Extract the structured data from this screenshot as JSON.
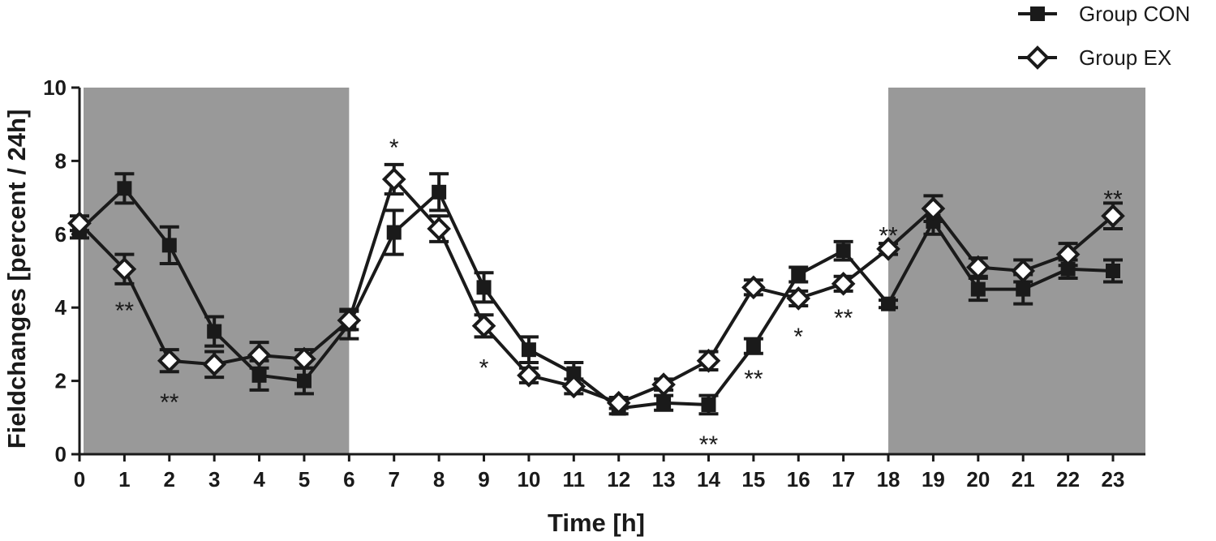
{
  "chart_data": {
    "type": "line",
    "xlabel": "Time [h]",
    "ylabel": "Fieldchanges [percent / 24h]",
    "xlim": [
      0,
      23
    ],
    "ylim": [
      0,
      10
    ],
    "x_ticks": [
      "0",
      "1",
      "2",
      "3",
      "4",
      "5",
      "6",
      "7",
      "8",
      "9",
      "10",
      "11",
      "12",
      "13",
      "14",
      "15",
      "16",
      "17",
      "18",
      "19",
      "20",
      "21",
      "22",
      "23"
    ],
    "y_ticks": [
      "0",
      "2",
      "4",
      "6",
      "8",
      "10"
    ],
    "grid": false,
    "legend_position": "top-right",
    "shaded_regions": [
      [
        0,
        6
      ],
      [
        18,
        23
      ]
    ],
    "shade_color": "#999999",
    "line_color": "#1a1a1a",
    "series": [
      {
        "name": "Group CON",
        "marker": "square-filled",
        "x": [
          0,
          1,
          2,
          3,
          4,
          5,
          6,
          7,
          8,
          9,
          10,
          11,
          12,
          13,
          14,
          15,
          16,
          17,
          18,
          19,
          20,
          21,
          22,
          23
        ],
        "y": [
          6.1,
          7.25,
          5.7,
          3.35,
          2.15,
          2.0,
          3.55,
          6.05,
          7.15,
          4.55,
          2.85,
          2.2,
          1.25,
          1.4,
          1.35,
          2.95,
          4.9,
          5.55,
          4.1,
          6.35,
          4.5,
          4.5,
          5.05,
          5.0
        ],
        "err": [
          0.2,
          0.4,
          0.5,
          0.4,
          0.4,
          0.35,
          0.4,
          0.6,
          0.5,
          0.4,
          0.35,
          0.3,
          0.15,
          0.2,
          0.25,
          0.2,
          0.2,
          0.25,
          0.1,
          0.35,
          0.3,
          0.4,
          0.25,
          0.3
        ]
      },
      {
        "name": "Group EX",
        "marker": "diamond-open",
        "x": [
          0,
          1,
          2,
          3,
          4,
          5,
          6,
          7,
          8,
          9,
          10,
          11,
          12,
          13,
          14,
          15,
          16,
          17,
          18,
          19,
          20,
          21,
          22,
          23
        ],
        "y": [
          6.3,
          5.05,
          2.55,
          2.45,
          2.7,
          2.6,
          3.65,
          7.5,
          6.15,
          3.5,
          2.15,
          1.85,
          1.4,
          1.9,
          2.55,
          4.55,
          4.25,
          4.65,
          5.6,
          6.7,
          5.1,
          5.0,
          5.45,
          6.5
        ],
        "err": [
          0.2,
          0.4,
          0.3,
          0.35,
          0.35,
          0.25,
          0.25,
          0.4,
          0.35,
          0.3,
          0.2,
          0.2,
          0.15,
          0.15,
          0.25,
          0.2,
          0.2,
          0.2,
          0.15,
          0.35,
          0.25,
          0.3,
          0.3,
          0.35
        ]
      }
    ],
    "annotations": [
      {
        "x": 1,
        "y": 4.0,
        "text": "**"
      },
      {
        "x": 2,
        "y": 1.5,
        "text": "**"
      },
      {
        "x": 7,
        "y": 8.45,
        "text": "*"
      },
      {
        "x": 9,
        "y": 2.45,
        "text": "*"
      },
      {
        "x": 14,
        "y": 0.35,
        "text": "**"
      },
      {
        "x": 15,
        "y": 2.15,
        "text": "**"
      },
      {
        "x": 16,
        "y": 3.3,
        "text": "*"
      },
      {
        "x": 17,
        "y": 3.8,
        "text": "**"
      },
      {
        "x": 18,
        "y": 6.05,
        "text": "**"
      },
      {
        "x": 23,
        "y": 7.05,
        "text": "**"
      }
    ]
  }
}
